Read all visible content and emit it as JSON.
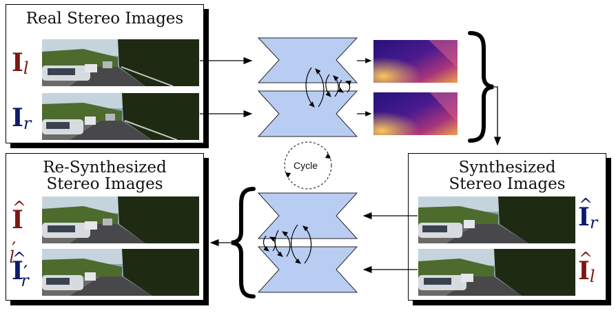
{
  "panels": {
    "real": {
      "title": "Real Stereo Images"
    },
    "resynth": {
      "title_line1": "Re-Synthesized",
      "title_line2": "Stereo Images"
    },
    "synth": {
      "title_line1": "Synthesized",
      "title_line2": "Stereo Images"
    }
  },
  "labels": {
    "I": "I",
    "l": "l",
    "r": "r",
    "prime": "′"
  },
  "cycle": {
    "label": "Cycle"
  },
  "colors": {
    "network_fill": "#b9cdf3",
    "left_label": "#7a1712",
    "right_label": "#0e1b6b",
    "depth_dark": "#1e0f6e",
    "depth_mid": "#b0337a",
    "depth_light": "#f6b54a"
  }
}
